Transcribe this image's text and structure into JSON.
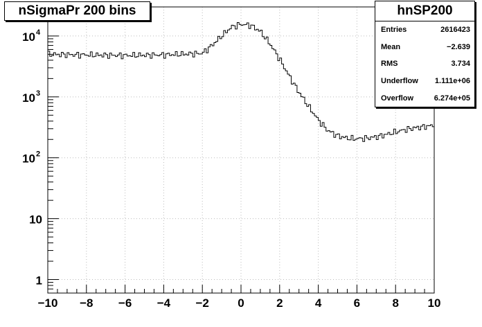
{
  "title": "nSigmaPr 200 bins",
  "stats": {
    "name": "hnSP200",
    "rows": [
      {
        "label": "Entries",
        "value": "2616423"
      },
      {
        "label": "Mean",
        "value": "−2.639"
      },
      {
        "label": "RMS",
        "value": "3.734"
      },
      {
        "label": "Underflow",
        "value": "1.111e+06"
      },
      {
        "label": "Overflow",
        "value": "6.274e+05"
      }
    ]
  },
  "chart_data": {
    "type": "histogram",
    "title": "nSigmaPr 200 bins",
    "xlabel": "",
    "ylabel": "",
    "xlim": [
      -10,
      10
    ],
    "ylim": [
      0.6,
      30000
    ],
    "log_y": true,
    "grid": true,
    "xticks": [
      "−10",
      "−8",
      "−6",
      "−4",
      "−2",
      "0",
      "2",
      "4",
      "6",
      "8",
      "10"
    ],
    "yticks": [
      {
        "value": 1,
        "label": "1"
      },
      {
        "value": 10,
        "label": "10"
      },
      {
        "value": 100,
        "label": "10",
        "exp": "2"
      },
      {
        "value": 1000,
        "label": "10",
        "exp": "3"
      },
      {
        "value": 10000,
        "label": "10",
        "exp": "4"
      }
    ],
    "bins": 200,
    "line_color": "#000000",
    "curve_points": [
      [
        -10,
        5000
      ],
      [
        -8,
        4900
      ],
      [
        -6,
        4800
      ],
      [
        -4,
        4900
      ],
      [
        -2,
        5200
      ],
      [
        -1.5,
        7000
      ],
      [
        -1,
        10000
      ],
      [
        -0.5,
        14000
      ],
      [
        0,
        15600
      ],
      [
        0.5,
        15000
      ],
      [
        1,
        12000
      ],
      [
        1.5,
        7500
      ],
      [
        2,
        4200
      ],
      [
        2.5,
        2200
      ],
      [
        3,
        1200
      ],
      [
        3.5,
        700
      ],
      [
        4,
        420
      ],
      [
        4.5,
        280
      ],
      [
        5,
        230
      ],
      [
        5.5,
        210
      ],
      [
        6,
        205
      ],
      [
        6.5,
        210
      ],
      [
        7,
        220
      ],
      [
        7.5,
        240
      ],
      [
        8,
        265
      ],
      [
        8.5,
        290
      ],
      [
        9,
        310
      ],
      [
        9.5,
        325
      ],
      [
        10,
        340
      ]
    ]
  }
}
